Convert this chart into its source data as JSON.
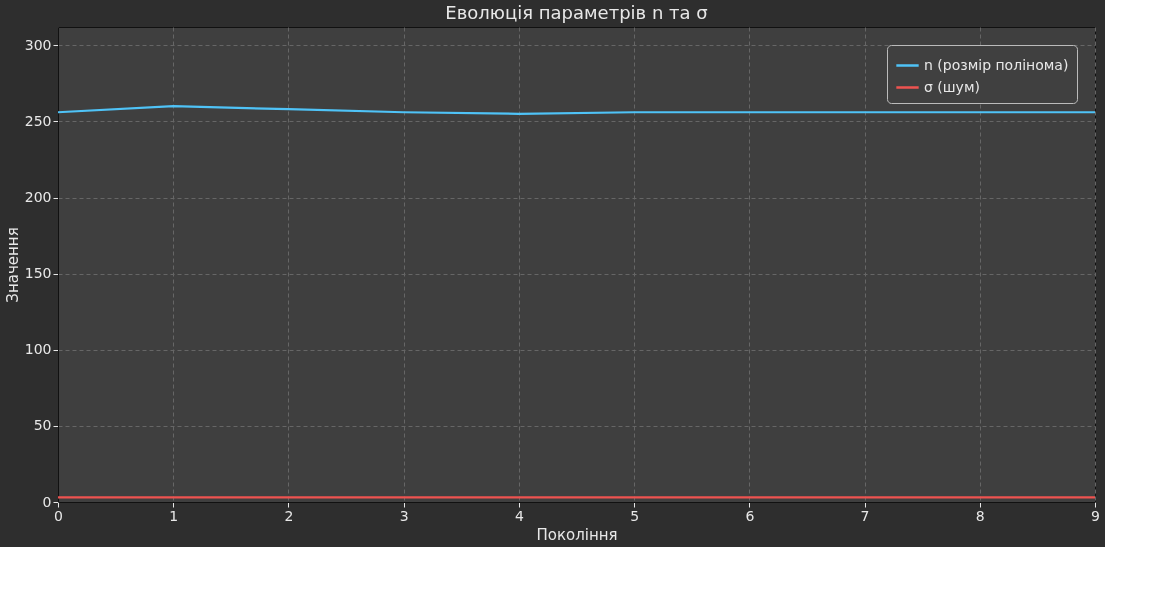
{
  "chart_data": {
    "type": "line",
    "title": "Еволюція параметрів n та σ",
    "xlabel": "Покоління",
    "ylabel": "Значення",
    "x": [
      0,
      1,
      2,
      3,
      4,
      5,
      6,
      7,
      8,
      9
    ],
    "series": [
      {
        "name": "n (розмір полінома)",
        "color": "#4fc3f7",
        "values": [
          256,
          260,
          258,
          256,
          255,
          256,
          256,
          256,
          256,
          256
        ]
      },
      {
        "name": "σ (шум)",
        "color": "#ef5350",
        "values": [
          3,
          3,
          3,
          3,
          3,
          3,
          3,
          3,
          3,
          3
        ]
      }
    ],
    "xlim": [
      0,
      9
    ],
    "xticks": [
      0,
      1,
      2,
      3,
      4,
      5,
      6,
      7,
      8,
      9
    ],
    "ylim": [
      0,
      312
    ],
    "yticks": [
      0,
      50,
      100,
      150,
      200,
      250,
      300
    ],
    "grid": true,
    "legend": "top right",
    "marker": "none",
    "line_style": "solid"
  }
}
